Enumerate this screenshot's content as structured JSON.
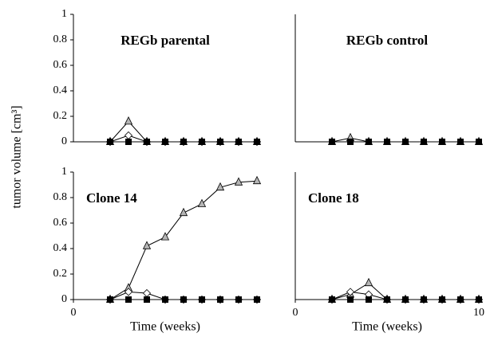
{
  "chart_data": [
    {
      "type": "line",
      "title": "REGb parental",
      "y_label": "tumor volume [cm³]",
      "x": [
        2,
        3,
        4,
        5,
        6,
        7,
        8,
        9,
        10
      ],
      "xlim": [
        0,
        10
      ],
      "ylim": [
        0,
        1
      ],
      "yticks": [
        0,
        0.2,
        0.4,
        0.6,
        0.8,
        1
      ],
      "series": [
        {
          "marker": "triangle",
          "color": "#b5b5b5",
          "values": [
            0,
            0.16,
            0,
            0,
            0,
            0,
            0,
            0,
            0
          ]
        },
        {
          "marker": "diamond",
          "color": "#ffffff",
          "values": [
            0,
            0.05,
            0,
            0,
            0,
            0,
            0,
            0,
            0
          ]
        },
        {
          "marker": "square",
          "color": "#000000",
          "values": [
            0,
            0,
            0,
            0,
            0,
            0,
            0,
            0,
            0
          ]
        }
      ]
    },
    {
      "type": "line",
      "title": "REGb control",
      "x": [
        2,
        3,
        4,
        5,
        6,
        7,
        8,
        9,
        10
      ],
      "xlim": [
        0,
        10
      ],
      "ylim": [
        0,
        1
      ],
      "series": [
        {
          "marker": "triangle",
          "color": "#b5b5b5",
          "values": [
            0,
            0.03,
            0,
            0,
            0,
            0,
            0,
            0,
            0
          ]
        },
        {
          "marker": "square",
          "color": "#000000",
          "values": [
            0,
            0,
            0,
            0,
            0,
            0,
            0,
            0,
            0
          ]
        }
      ]
    },
    {
      "type": "line",
      "title": "Clone 14",
      "x_label": "Time (weeks)",
      "x": [
        2,
        3,
        4,
        5,
        6,
        7,
        8,
        9,
        10
      ],
      "xlim": [
        0,
        10
      ],
      "xticks": [
        0
      ],
      "ylim": [
        0,
        1
      ],
      "yticks": [
        0,
        0.2,
        0.4,
        0.6,
        0.8,
        1
      ],
      "series": [
        {
          "marker": "triangle",
          "color": "#b5b5b5",
          "values": [
            0,
            0.09,
            0.42,
            0.49,
            0.68,
            0.75,
            0.88,
            0.92,
            0.93
          ]
        },
        {
          "marker": "diamond",
          "color": "#ffffff",
          "values": [
            0,
            0.06,
            0.05,
            0,
            0,
            0,
            0,
            0,
            0
          ]
        },
        {
          "marker": "square",
          "color": "#000000",
          "values": [
            0,
            0,
            0,
            0,
            0,
            0,
            0,
            0,
            0
          ]
        }
      ]
    },
    {
      "type": "line",
      "title": "Clone 18",
      "x_label": "Time (weeks)",
      "x": [
        2,
        3,
        4,
        5,
        6,
        7,
        8,
        9,
        10
      ],
      "xlim": [
        0,
        10
      ],
      "xticks": [
        0,
        10
      ],
      "ylim": [
        0,
        1
      ],
      "series": [
        {
          "marker": "triangle",
          "color": "#b5b5b5",
          "values": [
            0,
            0.04,
            0.13,
            0,
            0,
            0,
            0,
            0,
            0
          ]
        },
        {
          "marker": "diamond",
          "color": "#ffffff",
          "values": [
            0,
            0.06,
            0.04,
            0,
            0,
            0,
            0,
            0,
            0
          ]
        },
        {
          "marker": "square",
          "color": "#000000",
          "values": [
            0,
            0,
            0,
            0,
            0,
            0,
            0,
            0,
            0
          ]
        }
      ]
    }
  ]
}
